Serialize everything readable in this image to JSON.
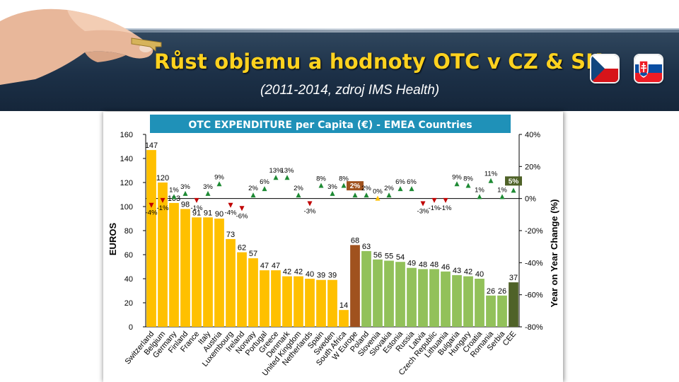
{
  "slide": {
    "title": "Růst objemu a hodnoty OTC v CZ & SK",
    "subtitle": "(2011-2014, zdroj IMS Health)"
  },
  "flags": [
    {
      "name": "czech-flag-icon",
      "colors": [
        "#ffffff",
        "#d7141a",
        "#11457e"
      ]
    },
    {
      "name": "slovak-flag-icon",
      "colors": [
        "#ffffff",
        "#0b4ea2",
        "#ee1c25"
      ]
    }
  ],
  "colors": {
    "banner": "#1c3047",
    "title": "#ffd21f",
    "chart_header": "#1f91b8",
    "western": "#ffc000",
    "w_europe": "#a0521e",
    "eastern": "#92c15a",
    "cee": "#4f6228",
    "up_marker": "#1e8a34",
    "down_marker": "#c00000",
    "flat_marker": "#ffc000"
  },
  "chart_data": {
    "type": "bar",
    "title": "OTC EXPENDITURE per Capita (€) - EMEA Countries",
    "ylabel": "EUROS",
    "y2label": "Year on Year Change (%)",
    "ylim": [
      0,
      160
    ],
    "y_ticks": [
      0,
      20,
      40,
      60,
      80,
      100,
      120,
      140,
      160
    ],
    "y2lim": [
      -80,
      40
    ],
    "y2_ticks": [
      "40%",
      "20%",
      "0%",
      "-20%",
      "-40%",
      "-60%",
      "-80%"
    ],
    "y2_tick_values": [
      40,
      20,
      0,
      -20,
      -40,
      -60,
      -80
    ],
    "grid": false,
    "categories": [
      "Switzerland",
      "Belgium",
      "Germany",
      "Finland",
      "France",
      "Italy",
      "Austria",
      "Luxembourg",
      "Ireland",
      "Norway",
      "Portugal",
      "Greece",
      "Denmark",
      "United Kingdom",
      "Netherlands",
      "Spain",
      "Sweden",
      "South Africa",
      "W Europe",
      "Poland",
      "Slovenia",
      "Slovakia",
      "Estonia",
      "Russia",
      "Latvia",
      "Czech Republic",
      "Lithuania",
      "Bulgaria",
      "Hungary",
      "Croatia",
      "Romania",
      "Serbia",
      "CEE"
    ],
    "values": [
      147,
      120,
      103,
      98,
      91,
      91,
      90,
      73,
      62,
      57,
      47,
      47,
      42,
      42,
      40,
      39,
      39,
      14,
      68,
      63,
      56,
      55,
      54,
      49,
      48,
      48,
      46,
      43,
      42,
      40,
      26,
      26,
      37
    ],
    "value_labels": [
      "147",
      "120",
      "103",
      "98",
      "91",
      "91",
      "90",
      "73",
      "62",
      "57",
      "47",
      "47",
      "42",
      "42",
      "40",
      "39",
      "39",
      "14",
      "68",
      "63",
      "56",
      "55",
      "54",
      "49",
      "48",
      "48",
      "46",
      "43",
      "42",
      "40",
      "26",
      "26",
      "37"
    ],
    "groups": [
      "western",
      "western",
      "western",
      "western",
      "western",
      "western",
      "western",
      "western",
      "western",
      "western",
      "western",
      "western",
      "western",
      "western",
      "western",
      "western",
      "western",
      "western",
      "w_europe",
      "eastern",
      "eastern",
      "eastern",
      "eastern",
      "eastern",
      "eastern",
      "eastern",
      "eastern",
      "eastern",
      "eastern",
      "eastern",
      "eastern",
      "eastern",
      "cee"
    ],
    "yoy_change": [
      -4,
      -1,
      1,
      3,
      -1,
      3,
      9,
      -4,
      -6,
      2,
      6,
      13,
      13,
      2,
      -3,
      8,
      3,
      8,
      2,
      2,
      0,
      2,
      6,
      6,
      -3,
      -1,
      -1,
      9,
      8,
      1,
      11,
      1,
      5
    ],
    "yoy_labels": [
      "-4%",
      "-1%",
      "1%",
      "3%",
      "-1%",
      "3%",
      "9%",
      "-4%",
      "-6%",
      "2%",
      "6%",
      "13%",
      "13%",
      "2%",
      "-3%",
      "8%",
      "3%",
      "8%",
      "2%",
      "2%",
      "0%",
      "2%",
      "6%",
      "6%",
      "-3%",
      "-1%",
      "-1%",
      "9%",
      "8%",
      "1%",
      "11%",
      "1%",
      "5%"
    ]
  }
}
